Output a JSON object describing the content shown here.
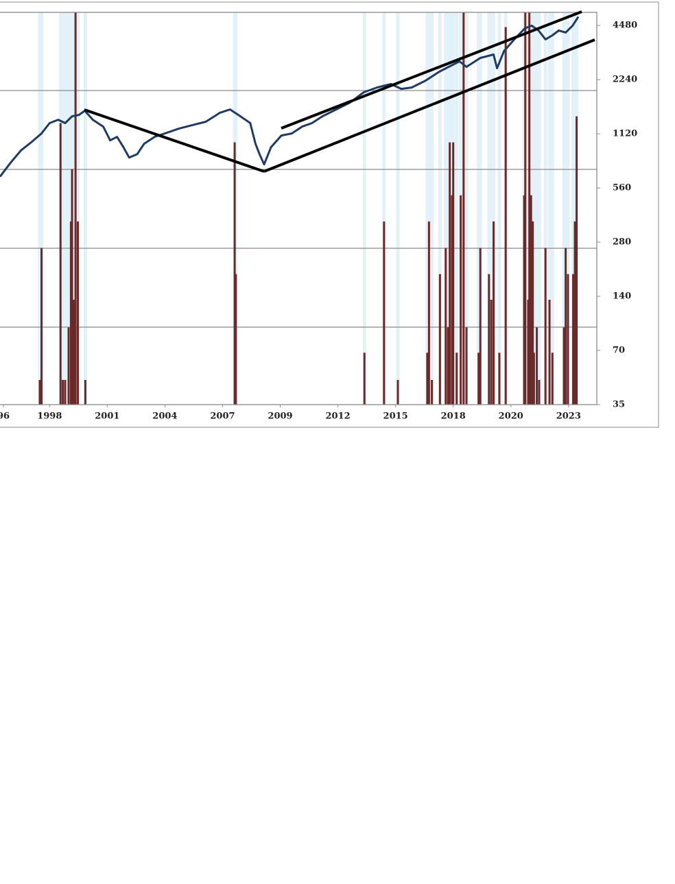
{
  "chart_data": {
    "type": "combo",
    "log_y": true,
    "xlim": [
      -0.86,
      9.49
    ],
    "xticks": [
      {
        "value": -0.8,
        "label": "96"
      },
      {
        "value": 0,
        "label": "1998"
      },
      {
        "value": 1,
        "label": "2001"
      },
      {
        "value": 2,
        "label": "2004"
      },
      {
        "value": 3,
        "label": "2007"
      },
      {
        "value": 4,
        "label": "2009"
      },
      {
        "value": 5,
        "label": "2012"
      },
      {
        "value": 6,
        "label": "2015"
      },
      {
        "value": 7,
        "label": "2018"
      },
      {
        "value": 8,
        "label": "2020"
      },
      {
        "value": 9,
        "label": "2023"
      }
    ],
    "ylim": [
      35,
      5300
    ],
    "yticks": [
      35,
      70,
      140,
      280,
      560,
      1120,
      2240,
      4480
    ],
    "series": [
      {
        "type": "bar",
        "color": "#6b2a2a",
        "band_color": "#e3f1f8",
        "x": [
          -0.17,
          -0.14,
          0.19,
          0.23,
          0.27,
          0.33,
          0.37,
          0.39,
          0.42,
          0.45,
          0.49,
          0.62,
          3.21,
          3.23,
          5.46,
          5.8,
          6.04,
          6.55,
          6.58,
          6.63,
          6.77,
          6.87,
          6.91,
          6.94,
          6.98,
          7.0,
          7.06,
          7.13,
          7.18,
          7.23,
          7.44,
          7.47,
          7.62,
          7.66,
          7.7,
          7.8,
          7.91,
          8.23,
          8.25,
          8.3,
          8.32,
          8.35,
          8.38,
          8.4,
          8.45,
          8.49,
          8.6,
          8.67,
          8.72,
          8.92,
          8.95,
          8.99,
          9.08,
          9.11,
          9.14
        ],
        "values": [
          48,
          260,
          1284,
          48,
          48,
          94,
          365,
          712,
          134,
          5300,
          365,
          48,
          1004,
          186,
          68,
          365,
          48,
          68,
          365,
          48,
          186,
          260,
          94,
          1004,
          510,
          1004,
          68,
          510,
          5300,
          94,
          68,
          260,
          186,
          134,
          365,
          68,
          4390,
          510,
          5300,
          134,
          5300,
          510,
          365,
          68,
          94,
          48,
          260,
          134,
          68,
          94,
          260,
          186,
          186,
          365,
          1401
        ]
      },
      {
        "type": "line",
        "color": "#1f3b63",
        "x": [
          -0.86,
          -0.68,
          -0.5,
          -0.32,
          -0.14,
          0,
          0.15,
          0.27,
          0.39,
          0.51,
          0.61,
          0.75,
          0.93,
          1.05,
          1.17,
          1.28,
          1.38,
          1.52,
          1.64,
          1.82,
          2.0,
          2.24,
          2.47,
          2.71,
          2.95,
          3.13,
          3.31,
          3.48,
          3.57,
          3.64,
          3.72,
          3.84,
          4.02,
          4.2,
          4.38,
          4.55,
          4.73,
          4.97,
          5.21,
          5.45,
          5.68,
          5.92,
          6.1,
          6.28,
          6.52,
          6.76,
          6.99,
          7.11,
          7.23,
          7.47,
          7.7,
          7.76,
          7.88,
          8.06,
          8.24,
          8.36,
          8.48,
          8.6,
          8.72,
          8.83,
          8.95,
          9.07,
          9.17
        ],
        "values": [
          647,
          771,
          903,
          1004,
          1125,
          1284,
          1341,
          1284,
          1401,
          1427,
          1504,
          1341,
          1228,
          1030,
          1077,
          944,
          827,
          864,
          986,
          1077,
          1125,
          1196,
          1250,
          1307,
          1464,
          1530,
          1401,
          1284,
          986,
          864,
          757,
          944,
          1096,
          1125,
          1228,
          1284,
          1401,
          1530,
          1670,
          1906,
          2026,
          2118,
          1991,
          2026,
          2212,
          2481,
          2709,
          2830,
          2638,
          2956,
          3090,
          2592,
          3228,
          3749,
          4313,
          4470,
          4200,
          3749,
          3951,
          4200,
          4094,
          4470,
          5010
        ]
      }
    ]
  }
}
